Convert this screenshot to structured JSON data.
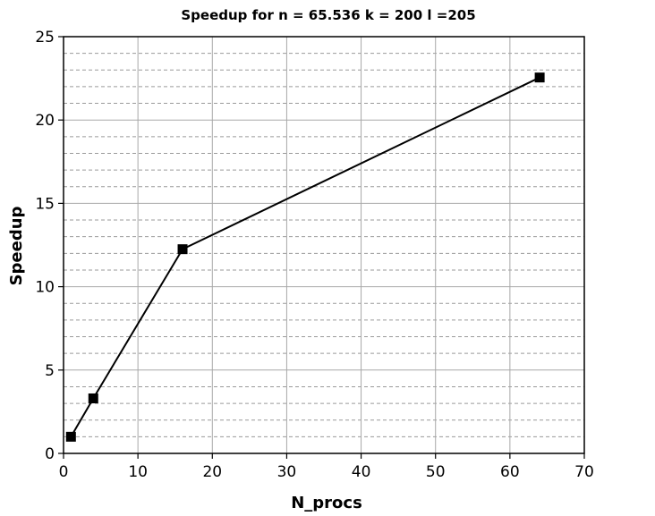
{
  "chart_data": {
    "type": "line",
    "title": "Speedup for n = 65.536 k = 200 l =205",
    "xlabel": "N_procs",
    "ylabel": "Speedup",
    "xlim": [
      0,
      70
    ],
    "ylim": [
      0,
      25
    ],
    "x_ticks": [
      0,
      10,
      20,
      30,
      40,
      50,
      60,
      70
    ],
    "y_ticks": [
      0,
      5,
      10,
      15,
      20,
      25
    ],
    "y_minor_step": 1,
    "grid": true,
    "legend": "none",
    "series": [
      {
        "x": [
          1,
          4,
          16,
          64
        ],
        "y": [
          1.0,
          3.3,
          12.25,
          22.55
        ],
        "marker": "square",
        "color": "#000000"
      }
    ]
  }
}
